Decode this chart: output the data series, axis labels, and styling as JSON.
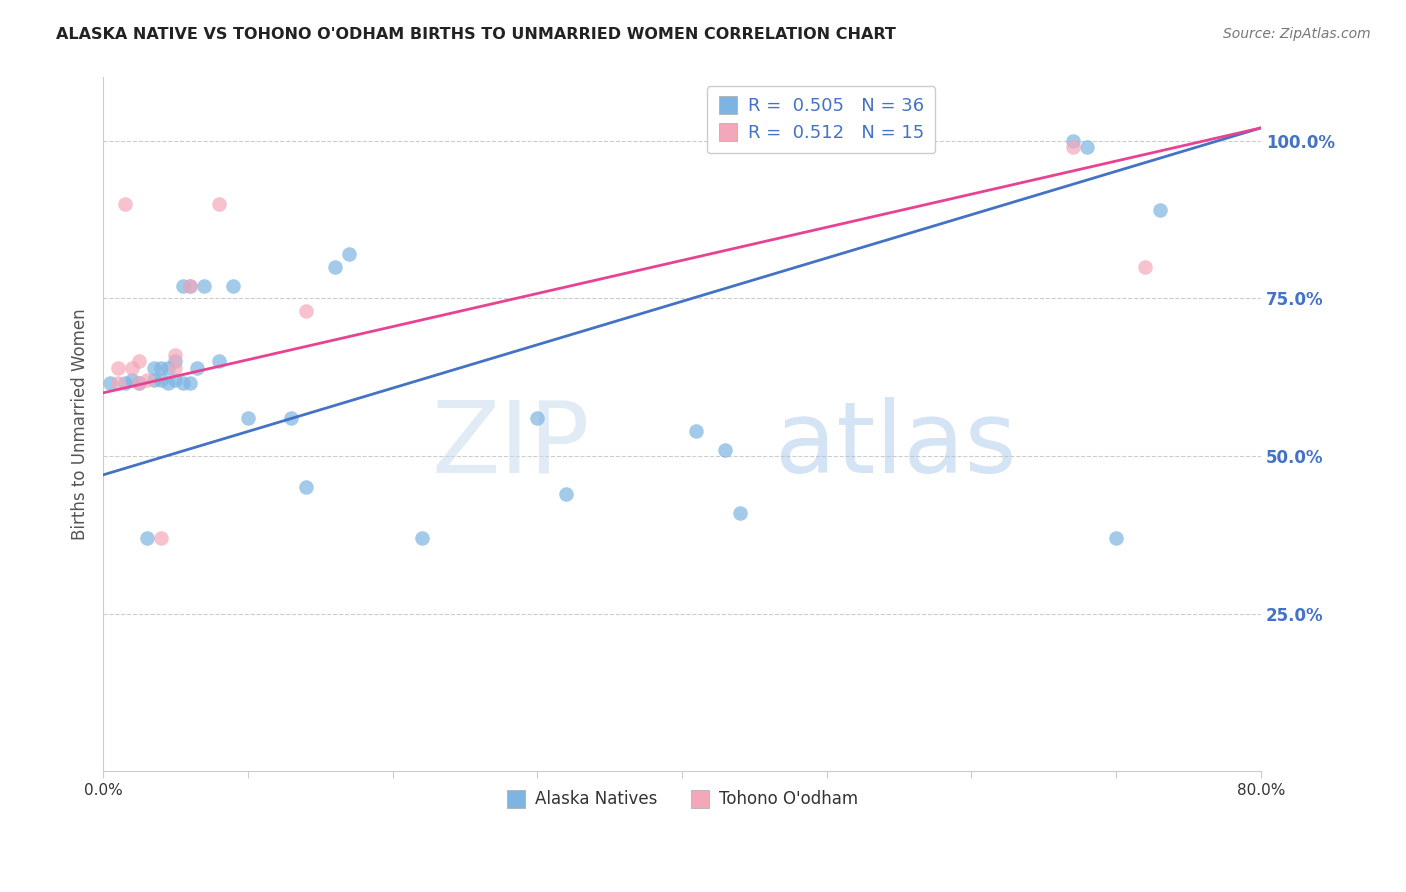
{
  "title": "ALASKA NATIVE VS TOHONO O'ODHAM BIRTHS TO UNMARRIED WOMEN CORRELATION CHART",
  "source": "Source: ZipAtlas.com",
  "ylabel_left": "Births to Unmarried Women",
  "legend_r": [
    0.505,
    0.512
  ],
  "legend_n": [
    36,
    15
  ],
  "blue_color": "#7EB4E2",
  "pink_color": "#F4A7B9",
  "blue_line_color": "#4472C4",
  "pink_line_color": "#E84393",
  "right_axis_color": "#4472C4",
  "watermark_zip": "ZIP",
  "watermark_atlas": "atlas",
  "xmin": 0.0,
  "xmax": 0.8,
  "ymin": 0.0,
  "ymax": 1.1,
  "x_ticks": [
    0.0,
    0.1,
    0.2,
    0.3,
    0.4,
    0.5,
    0.6,
    0.7,
    0.8
  ],
  "x_tick_labels": [
    "0.0%",
    "",
    "",
    "",
    "",
    "",
    "",
    "",
    "80.0%"
  ],
  "y_ticks_right": [
    0.25,
    0.5,
    0.75,
    1.0
  ],
  "y_tick_labels_right": [
    "25.0%",
    "50.0%",
    "75.0%",
    "100.0%"
  ],
  "alaska_x": [
    0.005,
    0.015,
    0.02,
    0.025,
    0.03,
    0.035,
    0.035,
    0.04,
    0.04,
    0.045,
    0.045,
    0.05,
    0.05,
    0.055,
    0.055,
    0.06,
    0.06,
    0.065,
    0.07,
    0.08,
    0.09,
    0.1,
    0.13,
    0.14,
    0.16,
    0.17,
    0.22,
    0.3,
    0.32,
    0.41,
    0.43,
    0.44,
    0.67,
    0.68,
    0.7,
    0.73
  ],
  "alaska_y": [
    0.615,
    0.615,
    0.62,
    0.615,
    0.37,
    0.62,
    0.64,
    0.62,
    0.64,
    0.615,
    0.64,
    0.62,
    0.65,
    0.615,
    0.77,
    0.615,
    0.77,
    0.64,
    0.77,
    0.65,
    0.77,
    0.56,
    0.56,
    0.45,
    0.8,
    0.82,
    0.37,
    0.56,
    0.44,
    0.54,
    0.51,
    0.41,
    1.0,
    0.99,
    0.37,
    0.89
  ],
  "tohono_x": [
    0.01,
    0.01,
    0.015,
    0.02,
    0.025,
    0.03,
    0.04,
    0.05,
    0.05,
    0.06,
    0.08,
    0.14,
    0.67,
    0.72,
    0.025
  ],
  "tohono_y": [
    0.615,
    0.64,
    0.9,
    0.64,
    0.65,
    0.62,
    0.37,
    0.64,
    0.66,
    0.77,
    0.9,
    0.73,
    0.99,
    0.8,
    0.615
  ],
  "blue_line_x0": 0.0,
  "blue_line_x1": 0.8,
  "blue_line_y0": 0.47,
  "blue_line_y1": 1.02,
  "pink_line_x0": 0.0,
  "pink_line_x1": 0.8,
  "pink_line_y0": 0.6,
  "pink_line_y1": 1.02
}
